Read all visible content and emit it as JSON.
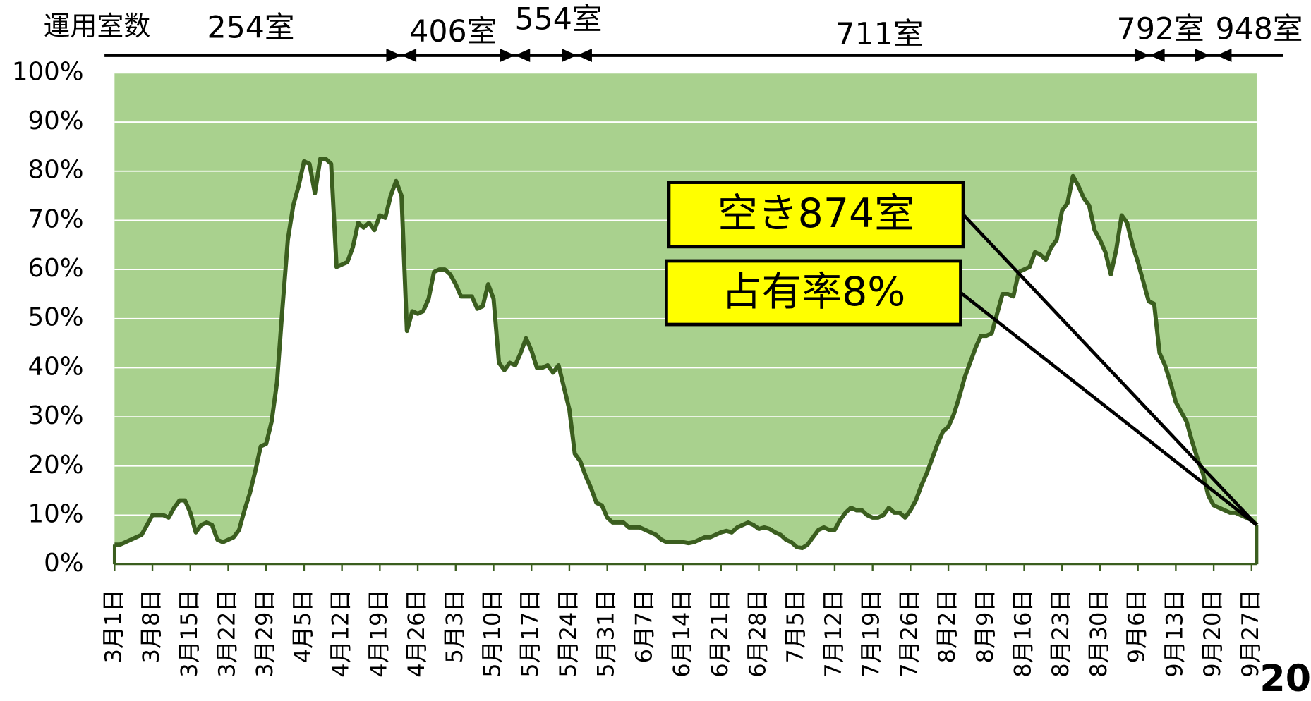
{
  "chart_data": {
    "type": "line",
    "categories": [
      "3月1日",
      null,
      null,
      null,
      null,
      null,
      null,
      "3月8日",
      null,
      null,
      null,
      null,
      null,
      null,
      "3月15日",
      null,
      null,
      null,
      null,
      null,
      null,
      "3月22日",
      null,
      null,
      null,
      null,
      null,
      null,
      "3月29日",
      null,
      null,
      null,
      null,
      null,
      null,
      "4月5日",
      null,
      null,
      null,
      null,
      null,
      null,
      "4月12日",
      null,
      null,
      null,
      null,
      null,
      null,
      "4月19日",
      null,
      null,
      null,
      null,
      null,
      null,
      "4月26日",
      null,
      null,
      null,
      null,
      null,
      null,
      "5月3日",
      null,
      null,
      null,
      null,
      null,
      null,
      "5月10日",
      null,
      null,
      null,
      null,
      null,
      null,
      "5月17日",
      null,
      null,
      null,
      null,
      null,
      null,
      "5月24日",
      null,
      null,
      null,
      null,
      null,
      null,
      "5月31日",
      null,
      null,
      null,
      null,
      null,
      null,
      "6月7日",
      null,
      null,
      null,
      null,
      null,
      null,
      "6月14日",
      null,
      null,
      null,
      null,
      null,
      null,
      "6月21日",
      null,
      null,
      null,
      null,
      null,
      null,
      "6月28日",
      null,
      null,
      null,
      null,
      null,
      null,
      "7月5日",
      null,
      null,
      null,
      null,
      null,
      null,
      "7月12日",
      null,
      null,
      null,
      null,
      null,
      null,
      "7月19日",
      null,
      null,
      null,
      null,
      null,
      null,
      "7月26日",
      null,
      null,
      null,
      null,
      null,
      null,
      "8月2日",
      null,
      null,
      null,
      null,
      null,
      null,
      "8月9日",
      null,
      null,
      null,
      null,
      null,
      null,
      "8月16日",
      null,
      null,
      null,
      null,
      null,
      null,
      "8月23日",
      null,
      null,
      null,
      null,
      null,
      null,
      "8月30日",
      null,
      null,
      null,
      null,
      null,
      null,
      "9月6日",
      null,
      null,
      null,
      null,
      null,
      null,
      "9月13日",
      null,
      null,
      null,
      null,
      null,
      null,
      "9月20日",
      null,
      null,
      null,
      null,
      null,
      null,
      "9月27日",
      null
    ],
    "series": [
      {
        "color": "#3b5e1f",
        "values": [
          4,
          4,
          4.5,
          5,
          5.5,
          6,
          8,
          10,
          10,
          10,
          9.5,
          11.5,
          13,
          13,
          10.5,
          6.5,
          8,
          8.5,
          8,
          5,
          4.5,
          5,
          5.5,
          7,
          11,
          14.5,
          19,
          24,
          24.5,
          29,
          37,
          52,
          66,
          73,
          77,
          82,
          81.5,
          75.5,
          82.5,
          82.5,
          81.5,
          60.5,
          61,
          61.5,
          64.5,
          69.5,
          68.5,
          69.5,
          68,
          71,
          70.5,
          75,
          78,
          75,
          47.5,
          51.5,
          51,
          51.5,
          54,
          59.5,
          60,
          60,
          59,
          57,
          54.5,
          54.5,
          54.5,
          52,
          52.5,
          57,
          54,
          41,
          39.5,
          41,
          40.5,
          43,
          46,
          43.5,
          40,
          40,
          40.5,
          39,
          40.5,
          36,
          31.5,
          22.5,
          21,
          18,
          15.5,
          12.5,
          12,
          9.5,
          8.5,
          8.5,
          8.5,
          7.5,
          7.5,
          7.5,
          7,
          6.5,
          6,
          5,
          4.5,
          4.5,
          4.5,
          4.5,
          4.3,
          4.5,
          5,
          5.5,
          5.5,
          6,
          6.5,
          6.8,
          6.5,
          7.5,
          8,
          8.5,
          8,
          7.2,
          7.5,
          7.2,
          6.5,
          6,
          5,
          4.5,
          3.5,
          3.3,
          4,
          5.5,
          7,
          7.5,
          7,
          7,
          9,
          10.5,
          11.5,
          11,
          11,
          10,
          9.5,
          9.5,
          10,
          11.5,
          10.5,
          10.5,
          9.5,
          11,
          13,
          16,
          18.5,
          21.5,
          24.5,
          27,
          28,
          30.5,
          34,
          38,
          41,
          44,
          46.5,
          46.5,
          47,
          51,
          55,
          55,
          54.5,
          59.5,
          60,
          60.5,
          63.5,
          63,
          62,
          64.5,
          66,
          72,
          73.5,
          79,
          77,
          74.5,
          73,
          68,
          66,
          63.5,
          59,
          64,
          71,
          69.5,
          65,
          61.5,
          57.5,
          53.5,
          53,
          43,
          40.5,
          37,
          33,
          31,
          29,
          25,
          21.5,
          18.5,
          14,
          12,
          11.5,
          11,
          10.5,
          10.5,
          10,
          9.5,
          9,
          8
        ]
      }
    ],
    "ylim": [
      0,
      100
    ],
    "yticks": [
      {
        "value": 0,
        "label": "0%"
      },
      {
        "value": 10,
        "label": "10%"
      },
      {
        "value": 20,
        "label": "20%"
      },
      {
        "value": 30,
        "label": "30%"
      },
      {
        "value": 40,
        "label": "40%"
      },
      {
        "value": 50,
        "label": "50%"
      },
      {
        "value": 60,
        "label": "60%"
      },
      {
        "value": 70,
        "label": "70%"
      },
      {
        "value": 80,
        "label": "80%"
      },
      {
        "value": 90,
        "label": "90%"
      },
      {
        "value": 100,
        "label": "100%"
      }
    ],
    "grid": true,
    "background_color": "#a9d18e",
    "annotations": {
      "rooms_label": "運用室数",
      "room_counts": [
        "254室",
        "406室",
        "554室",
        "711室",
        "792室",
        "948室"
      ],
      "callouts": [
        "空き874室",
        "占有率8%"
      ]
    }
  },
  "page_number": "20"
}
